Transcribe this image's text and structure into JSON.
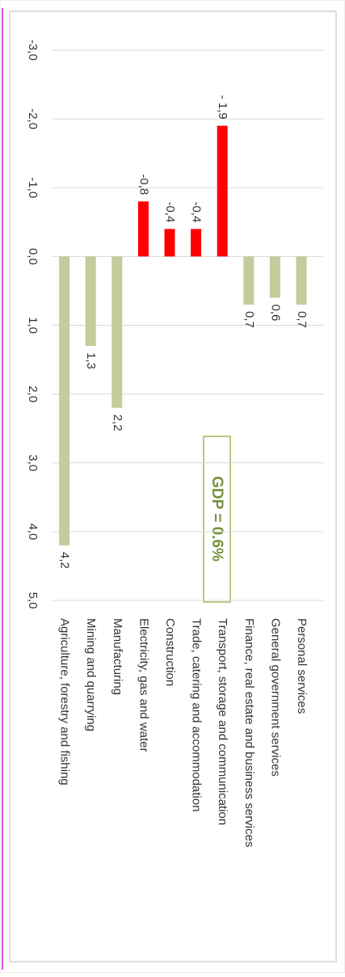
{
  "chart_data": {
    "type": "bar",
    "orientation": "horizontal",
    "categories": [
      "Personal services",
      "General government services",
      "Finance, real estate and business services",
      "Transport, storage and communication",
      "Trade, catering and accommodation",
      "Construction",
      "Electricity, gas and water",
      "Manufacturing",
      "Mining and quarrying",
      "Agriculture, forestry and fishing"
    ],
    "values": [
      0.7,
      0.6,
      0.7,
      -1.9,
      -0.4,
      -0.4,
      -0.8,
      2.2,
      1.3,
      4.2
    ],
    "value_labels": [
      "0,7",
      "0,6",
      "0,7",
      "- 1,9",
      "-0,4",
      "-0,4",
      "-0,8",
      "2,2",
      "1,3",
      "4,2"
    ],
    "colors": {
      "positive": "#c4cc9c",
      "negative": "#ff0000"
    },
    "xlim": [
      -3,
      5
    ],
    "xticks": [
      {
        "value": -3,
        "label": "-3,0"
      },
      {
        "value": -2,
        "label": "-2,0"
      },
      {
        "value": -1,
        "label": "-1,0"
      },
      {
        "value": 0,
        "label": "0,0"
      },
      {
        "value": 1,
        "label": "1,0"
      },
      {
        "value": 2,
        "label": "2,0"
      },
      {
        "value": 3,
        "label": "3,0"
      },
      {
        "value": 4,
        "label": "4,0"
      },
      {
        "value": 5,
        "label": "5,0"
      }
    ],
    "grid": true,
    "annotation": "GDP  = 0.6%"
  }
}
